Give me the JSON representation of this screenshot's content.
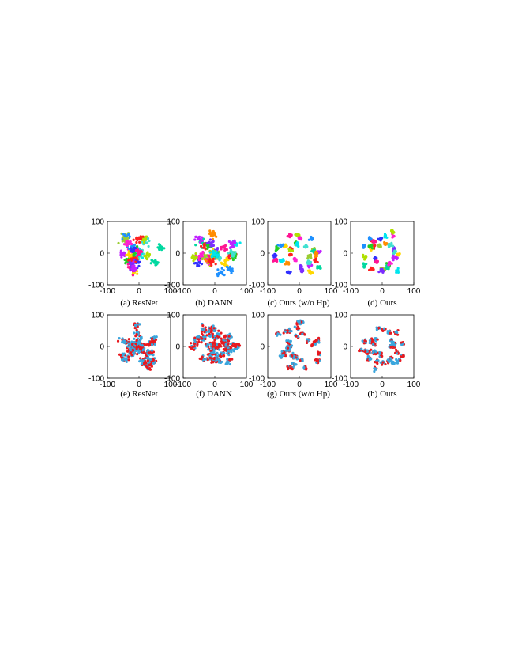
{
  "chart_data": [
    {
      "type": "scatter",
      "caption": "(a) ResNet",
      "xlim": [
        -100,
        100
      ],
      "ylim": [
        -100,
        100
      ],
      "x_ticks": [
        "-100",
        "0",
        "100"
      ],
      "y_ticks": [
        "100",
        "0",
        "-100"
      ],
      "color_mode": "class",
      "spread": "mixed",
      "grid": false
    },
    {
      "type": "scatter",
      "caption": "(b) DANN",
      "xlim": [
        -100,
        100
      ],
      "ylim": [
        -100,
        100
      ],
      "x_ticks": [
        "-100",
        "0",
        "100"
      ],
      "y_ticks": [
        "100",
        "0",
        "-100"
      ],
      "color_mode": "class",
      "spread": "mixed",
      "grid": false
    },
    {
      "type": "scatter",
      "caption": "(c) Ours (w/o Hp)",
      "xlim": [
        -100,
        100
      ],
      "ylim": [
        -100,
        100
      ],
      "x_ticks": [
        "-100",
        "0",
        "100"
      ],
      "y_ticks": [
        "100",
        "0",
        "-100"
      ],
      "color_mode": "class",
      "spread": "separated",
      "grid": false
    },
    {
      "type": "scatter",
      "caption": "(d) Ours",
      "xlim": [
        -100,
        100
      ],
      "ylim": [
        -100,
        100
      ],
      "x_ticks": [
        "-100",
        "0",
        "100"
      ],
      "y_ticks": [
        "100",
        "0",
        "-100"
      ],
      "color_mode": "class",
      "spread": "separated",
      "grid": false
    },
    {
      "type": "scatter",
      "caption": "(e) ResNet",
      "xlim": [
        -100,
        100
      ],
      "ylim": [
        -100,
        100
      ],
      "x_ticks": [
        "-100",
        "0",
        "100"
      ],
      "y_ticks": [
        "100",
        "0",
        "-100"
      ],
      "color_mode": "domain",
      "spread": "mixed",
      "grid": false
    },
    {
      "type": "scatter",
      "caption": "(f) DANN",
      "xlim": [
        -100,
        100
      ],
      "ylim": [
        -100,
        100
      ],
      "x_ticks": [
        "-100",
        "0",
        "100"
      ],
      "y_ticks": [
        "100",
        "0",
        "-100"
      ],
      "color_mode": "domain",
      "spread": "mixed",
      "grid": false
    },
    {
      "type": "scatter",
      "caption": "(g) Ours (w/o Hp)",
      "xlim": [
        -100,
        100
      ],
      "ylim": [
        -100,
        100
      ],
      "x_ticks": [
        "-100",
        "0",
        "100"
      ],
      "y_ticks": [
        "100",
        "0",
        "-100"
      ],
      "color_mode": "domain",
      "spread": "separated",
      "grid": false
    },
    {
      "type": "scatter",
      "caption": "(h) Ours",
      "xlim": [
        -100,
        100
      ],
      "ylim": [
        -100,
        100
      ],
      "x_ticks": [
        "-100",
        "0",
        "100"
      ],
      "y_ticks": [
        "100",
        "0",
        "-100"
      ],
      "color_mode": "domain",
      "spread": "separated",
      "grid": false
    }
  ],
  "colors": {
    "class_palette": [
      "#ff2020",
      "#ff8c00",
      "#ffd700",
      "#9acd32",
      "#22cc22",
      "#00d8a0",
      "#00e5ee",
      "#1e90ff",
      "#3030ff",
      "#7b2cff",
      "#c020ff",
      "#ff20d0",
      "#ff1493",
      "#40e0d0",
      "#b0e000"
    ],
    "domain_source": "#e8191f",
    "domain_target": "#3aa6dd",
    "axis": "#000000"
  }
}
